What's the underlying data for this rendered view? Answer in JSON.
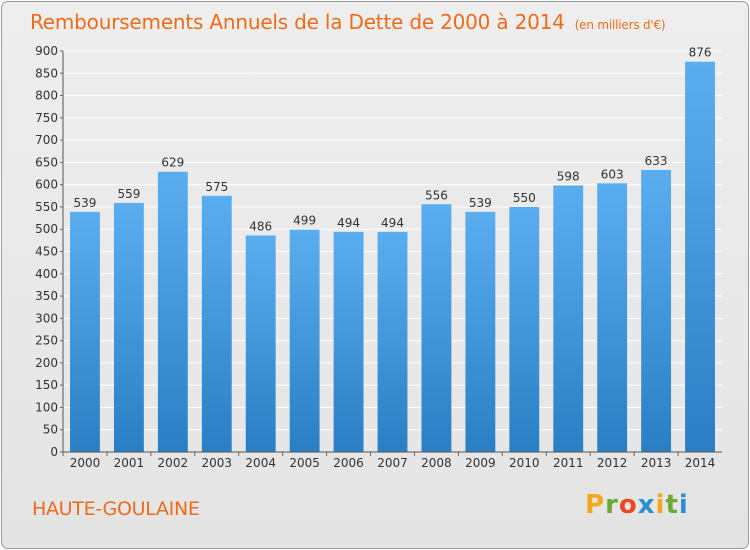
{
  "header": {
    "title": "Remboursements Annuels de la Dette de 2000 à 2014",
    "unit": "(en milliers d'€)"
  },
  "footer": {
    "commune": "HAUTE-GOULAINE",
    "brand_letters": [
      "P",
      "r",
      "o",
      "x",
      "i",
      "t",
      "i"
    ],
    "brand_colors": [
      "#f4a81d",
      "#6ea938",
      "#e94a1f",
      "#2c8fcf",
      "#f4a81d",
      "#6ea938",
      "#2c8fcf"
    ]
  },
  "chart_data": {
    "type": "bar",
    "title": "Remboursements Annuels de la Dette de 2000 à 2014",
    "xlabel": "",
    "ylabel": "",
    "categories": [
      "2000",
      "2001",
      "2002",
      "2003",
      "2004",
      "2005",
      "2006",
      "2007",
      "2008",
      "2009",
      "2010",
      "2011",
      "2012",
      "2013",
      "2014"
    ],
    "values": [
      539,
      559,
      629,
      575,
      486,
      499,
      494,
      494,
      556,
      539,
      550,
      598,
      603,
      633,
      876
    ],
    "ylim": [
      0,
      900
    ],
    "yticks": [
      0,
      50,
      100,
      150,
      200,
      250,
      300,
      350,
      400,
      450,
      500,
      550,
      600,
      650,
      700,
      750,
      800,
      850,
      900
    ],
    "grid": true,
    "bar_color_top": "#5aaef0",
    "bar_color_bottom": "#2a7fc4"
  }
}
